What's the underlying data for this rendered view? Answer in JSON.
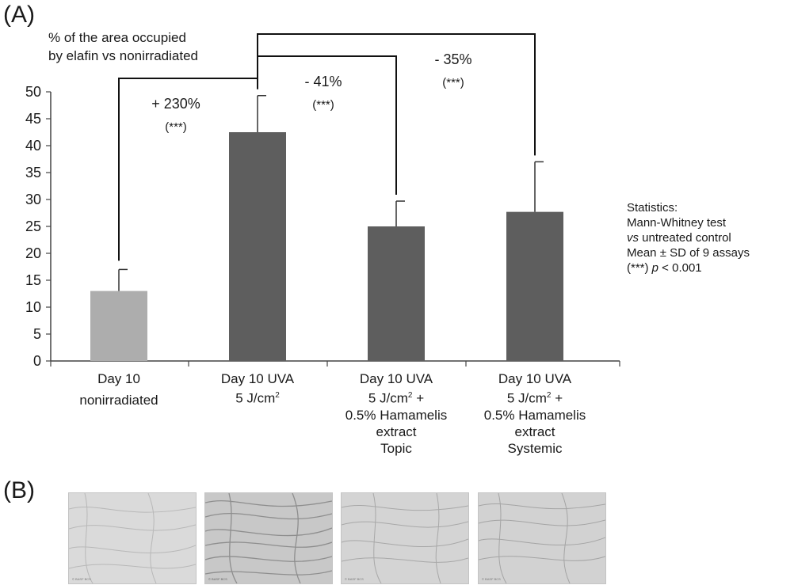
{
  "panel_a_label": "(A)",
  "panel_b_label": "(B)",
  "y_axis_label_line1": "% of the area occupied",
  "y_axis_label_line2": "by elafin vs nonirradiated",
  "stats_title": "Statistics:",
  "stats_line1": "Mann-Whitney test",
  "stats_line2_italic": "vs",
  "stats_line2_rest": " untreated control",
  "stats_line3": "Mean ± SD of 9 assays",
  "stats_line4_prefix": "(***) ",
  "stats_line4_p": "p",
  "stats_line4_rest": " < 0.001",
  "chart_data": {
    "type": "bar",
    "categories": [
      [
        "Day 10",
        "nonirradiated"
      ],
      [
        "Day 10 UVA",
        "5 J/cm²"
      ],
      [
        "Day 10 UVA",
        "5 J/cm² +",
        "0.5% Hamamelis",
        "extract",
        "Topic"
      ],
      [
        "Day 10 UVA",
        "5 J/cm² +",
        "0.5% Hamamelis",
        "extract",
        "Systemic"
      ]
    ],
    "values": [
      13,
      42.5,
      25,
      27.7
    ],
    "errors": [
      4,
      6.8,
      4.7,
      9.3
    ],
    "bar_colors": [
      "#adadad",
      "#5e5e5e",
      "#5e5e5e",
      "#5e5e5e"
    ],
    "ylim": [
      0,
      50
    ],
    "yticks": [
      0,
      5,
      10,
      15,
      20,
      25,
      30,
      35,
      40,
      45,
      50
    ],
    "annotations": [
      {
        "from": 0,
        "to": 1,
        "label": "+ 230%",
        "sig": "(***)"
      },
      {
        "from": 1,
        "to": 2,
        "label": "- 41%",
        "sig": "(***)"
      },
      {
        "from": 1,
        "to": 3,
        "label": "- 35%",
        "sig": "(***)"
      }
    ]
  },
  "thumb_captions": [
    "© BASF BCS",
    "© BASF BCS",
    "© BASF BCS",
    "© BASF BCS"
  ]
}
